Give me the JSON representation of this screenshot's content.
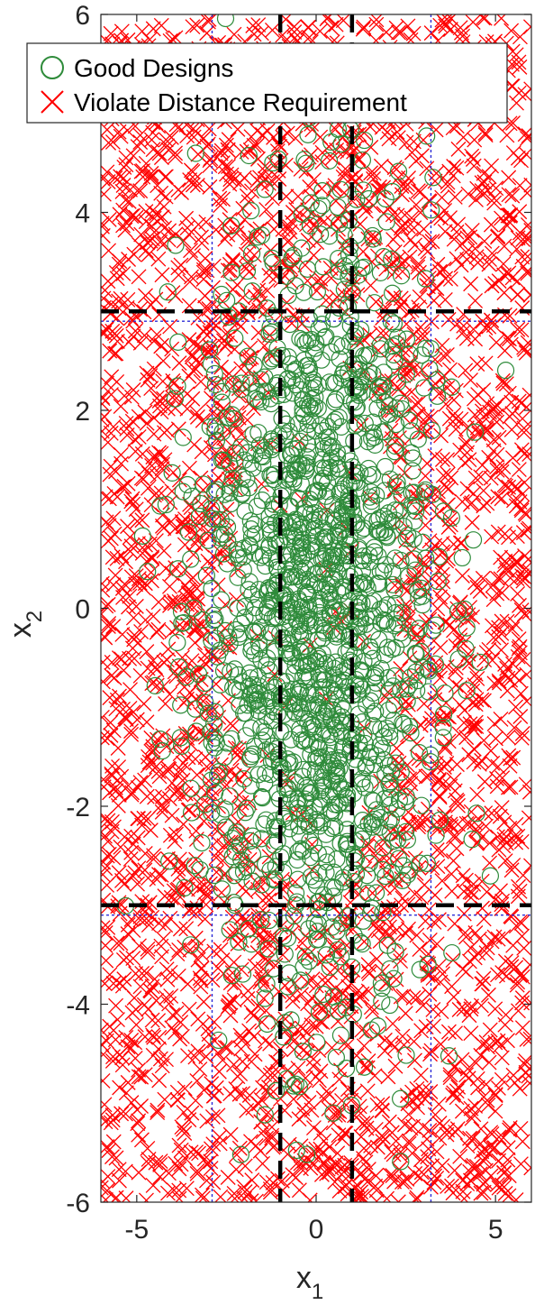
{
  "chart_data": {
    "type": "scatter",
    "title": "",
    "xlabel": {
      "base": "x",
      "sub": "1"
    },
    "ylabel": {
      "base": "x",
      "sub": "2"
    },
    "xlim": [
      -6,
      6
    ],
    "ylim": [
      -6,
      6
    ],
    "xticks": [
      -5,
      0,
      5
    ],
    "yticks": [
      -6,
      -4,
      -2,
      0,
      2,
      4,
      6
    ],
    "grid": false,
    "legend_placement": "top-left",
    "series": [
      {
        "name": "Good Designs",
        "marker": "circle",
        "color": "#2e8b3a",
        "distribution": {
          "center": [
            0,
            0
          ],
          "sd": [
            1.6,
            2.0
          ],
          "count": 1600
        }
      },
      {
        "name": "Violate Distance Requirement",
        "marker": "x",
        "color": "#ff0000",
        "distribution": {
          "region": [
            [
              -6,
              6
            ],
            [
              -6,
              6
            ]
          ],
          "count": 3200
        }
      }
    ],
    "reference_lines": [
      {
        "axis": "x",
        "value": -1,
        "style": "dashed",
        "color": "#000000"
      },
      {
        "axis": "x",
        "value": 1,
        "style": "dashed",
        "color": "#000000"
      },
      {
        "axis": "y",
        "value": 3,
        "style": "dashed",
        "color": "#000000"
      },
      {
        "axis": "y",
        "value": -3,
        "style": "dashed",
        "color": "#000000"
      },
      {
        "axis": "x",
        "value": -2.9,
        "style": "dotted",
        "color": "#2b2bd6"
      },
      {
        "axis": "x",
        "value": 3.2,
        "style": "dotted",
        "color": "#2b2bd6"
      },
      {
        "axis": "y",
        "value": 2.9,
        "style": "dotted",
        "color": "#2b2bd6"
      },
      {
        "axis": "y",
        "value": -3.1,
        "style": "dotted",
        "color": "#2b2bd6"
      }
    ]
  }
}
